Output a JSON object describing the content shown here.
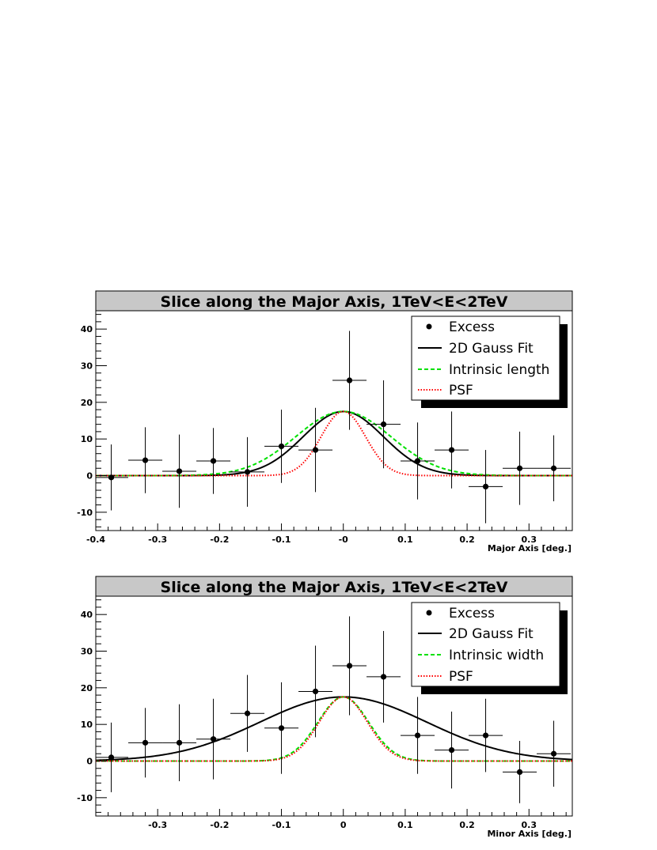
{
  "chart_data": [
    {
      "type": "scatter",
      "title": "Slice along the Major Axis, 1TeV<E<2TeV",
      "xlabel": "Major Axis [deg.]",
      "ylabel": "",
      "xlim": [
        -0.4,
        0.37
      ],
      "ylim": [
        -15,
        45
      ],
      "x_ticks": [
        -0.4,
        -0.3,
        -0.2,
        -0.1,
        0,
        0.1,
        0.2,
        0.3
      ],
      "x_tick_labels": [
        "-0.4",
        "-0.3",
        "-0.2",
        "-0.1",
        "-0",
        "0.1",
        "0.2",
        "0.3"
      ],
      "y_ticks": [
        -10,
        0,
        10,
        20,
        30,
        40
      ],
      "y_tick_labels": [
        "-10",
        "0",
        "10",
        "20",
        "30",
        "40"
      ],
      "grid": false,
      "legend_position": "top-right",
      "series": [
        {
          "name": "Excess",
          "kind": "points-with-errors",
          "color": "#000000",
          "x": [
            -0.375,
            -0.32,
            -0.265,
            -0.21,
            -0.155,
            -0.1,
            -0.045,
            0.01,
            0.065,
            0.12,
            0.175,
            0.23,
            0.285,
            0.34
          ],
          "y": [
            -0.5,
            4.2,
            1.2,
            4.0,
            1.0,
            8.0,
            7.0,
            26.0,
            14.0,
            4.0,
            7.0,
            -3.0,
            2.0,
            2.0
          ],
          "yerr": [
            9.0,
            9.0,
            10.0,
            9.0,
            9.5,
            10.0,
            11.5,
            13.5,
            12.0,
            10.5,
            10.5,
            10.0,
            10.0,
            9.0
          ],
          "xerr": 0.0275
        },
        {
          "name": "2D Gauss Fit",
          "kind": "gauss",
          "color": "#000000",
          "dash": "solid",
          "amp": 17.5,
          "mu": 0.0,
          "sigma": 0.065
        },
        {
          "name": "Intrinsic length",
          "kind": "gauss",
          "color": "#00e000",
          "dash": "dashed",
          "amp": 17.5,
          "mu": 0.0,
          "sigma": 0.077
        },
        {
          "name": "PSF",
          "kind": "gauss",
          "color": "#ff0000",
          "dash": "dotted",
          "amp": 17.5,
          "mu": 0.0,
          "sigma": 0.036
        }
      ]
    },
    {
      "type": "scatter",
      "title": "Slice along the Major Axis, 1TeV<E<2TeV",
      "xlabel": "Minor Axis [deg.]",
      "ylabel": "",
      "xlim": [
        -0.4,
        0.37
      ],
      "ylim": [
        -15,
        45
      ],
      "x_ticks": [
        -0.3,
        -0.2,
        -0.1,
        0,
        0.1,
        0.2,
        0.3
      ],
      "x_tick_labels": [
        "-0.3",
        "-0.2",
        "-0.1",
        "0",
        "0.1",
        "0.2",
        "0.3"
      ],
      "y_ticks": [
        -10,
        0,
        10,
        20,
        30,
        40
      ],
      "y_tick_labels": [
        "-10",
        "0",
        "10",
        "20",
        "30",
        "40"
      ],
      "grid": false,
      "legend_position": "top-right",
      "series": [
        {
          "name": "Excess",
          "kind": "points-with-errors",
          "color": "#000000",
          "x": [
            -0.375,
            -0.32,
            -0.265,
            -0.21,
            -0.155,
            -0.1,
            -0.045,
            0.01,
            0.065,
            0.12,
            0.175,
            0.23,
            0.285,
            0.34
          ],
          "y": [
            1.0,
            5.0,
            5.0,
            6.0,
            13.0,
            9.0,
            19.0,
            26.0,
            23.0,
            7.0,
            3.0,
            7.0,
            -3.0,
            2.0
          ],
          "yerr": [
            9.5,
            9.5,
            10.5,
            11.0,
            10.5,
            12.5,
            12.5,
            13.5,
            12.5,
            10.5,
            10.5,
            10.0,
            8.5,
            9.0
          ],
          "xerr": 0.0275
        },
        {
          "name": "2D Gauss Fit",
          "kind": "gauss",
          "color": "#000000",
          "dash": "solid",
          "amp": 17.5,
          "mu": 0.0,
          "sigma": 0.135
        },
        {
          "name": "Intrinsic width",
          "kind": "gauss",
          "color": "#00e000",
          "dash": "dashed",
          "amp": 17.5,
          "mu": 0.0,
          "sigma": 0.041
        },
        {
          "name": "PSF",
          "kind": "gauss",
          "color": "#ff0000",
          "dash": "dotted",
          "amp": 17.5,
          "mu": 0.0,
          "sigma": 0.039
        }
      ]
    }
  ]
}
